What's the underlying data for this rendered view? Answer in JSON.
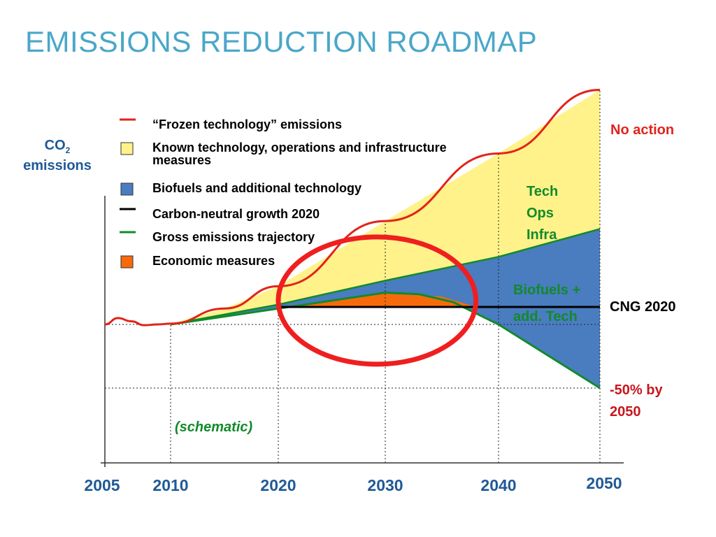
{
  "slide": {
    "title": "EMISSIONS REDUCTION ROADMAP"
  },
  "chart_data": {
    "type": "area",
    "ylabel_line1": "CO",
    "ylabel_sub": "2",
    "ylabel_line2": "emissions",
    "x_ticks": [
      "2005",
      "2010",
      "2020",
      "2030",
      "2040",
      "2050"
    ],
    "xlim": [
      2005,
      2050
    ],
    "grid_verticals": [
      2010,
      2020,
      2030,
      2040,
      2050
    ],
    "legend": [
      {
        "type": "line",
        "color": "#e2231a",
        "label_parts": [
          "“",
          "Frozen technology",
          "”",
          " emissions"
        ]
      },
      {
        "type": "box",
        "color": "#fff28a",
        "label": "Known technology, operations and infrastructure measures"
      },
      {
        "type": "box",
        "color": "#4a7cc0",
        "label": "Biofuels and additional technology"
      },
      {
        "type": "line",
        "color": "#000000",
        "label": "Carbon-neutral growth 2020"
      },
      {
        "type": "line",
        "color": "#128a2a",
        "label": "Gross emissions trajectory"
      },
      {
        "type": "box",
        "color": "#f76a0c",
        "label": "Economic measures"
      }
    ],
    "annotations": {
      "no_action": "No action",
      "tech": [
        "Tech",
        "Ops",
        "Infra"
      ],
      "biofuels": [
        "Biofuels +",
        "add. Tech"
      ],
      "cng": "CNG 2020",
      "minus50": [
        "-50% by",
        "2050"
      ],
      "schematic": "(schematic)"
    },
    "series": [
      {
        "name": "No action",
        "color": "#e2231a",
        "x": [
          2005,
          2006,
          2007,
          2008,
          2009,
          2010,
          2015,
          2020,
          2030,
          2040,
          2050
        ],
        "y": [
          1.0,
          1.08,
          1.04,
          0.99,
          1.0,
          1.01,
          1.2,
          1.48,
          2.3,
          3.15,
          3.95
        ]
      },
      {
        "name": "Known technology, operations and infrastructure measures",
        "color": "#fff28a",
        "x": [
          2010,
          2020,
          2030,
          2040,
          2050
        ],
        "y": [
          1.0,
          1.25,
          1.55,
          1.85,
          2.2
        ]
      },
      {
        "name": "Carbon-neutral growth 2020",
        "color": "#000000",
        "x": [
          2020,
          2050
        ],
        "y": [
          1.22,
          1.22
        ]
      },
      {
        "name": "Gross emissions trajectory",
        "color": "#128a2a",
        "x": [
          2010,
          2015,
          2020,
          2025,
          2030,
          2033,
          2036,
          2040,
          2045,
          2050
        ],
        "y": [
          1.0,
          1.1,
          1.2,
          1.3,
          1.4,
          1.38,
          1.28,
          1.0,
          0.6,
          0.2
        ]
      },
      {
        "name": "Economic measures",
        "color": "#f76a0c",
        "x": [
          2020,
          2025,
          2030,
          2035,
          2038
        ],
        "y": [
          1.22,
          1.3,
          1.4,
          1.35,
          1.22
        ]
      }
    ],
    "y_reference_lines": [
      1.0,
      0.2
    ],
    "highlight_ellipse_color": "#ef1f1f",
    "highlight_ellipse_x": [
      2020,
      2038
    ],
    "highlight_ellipse_y": [
      0.5,
      2.1
    ]
  }
}
